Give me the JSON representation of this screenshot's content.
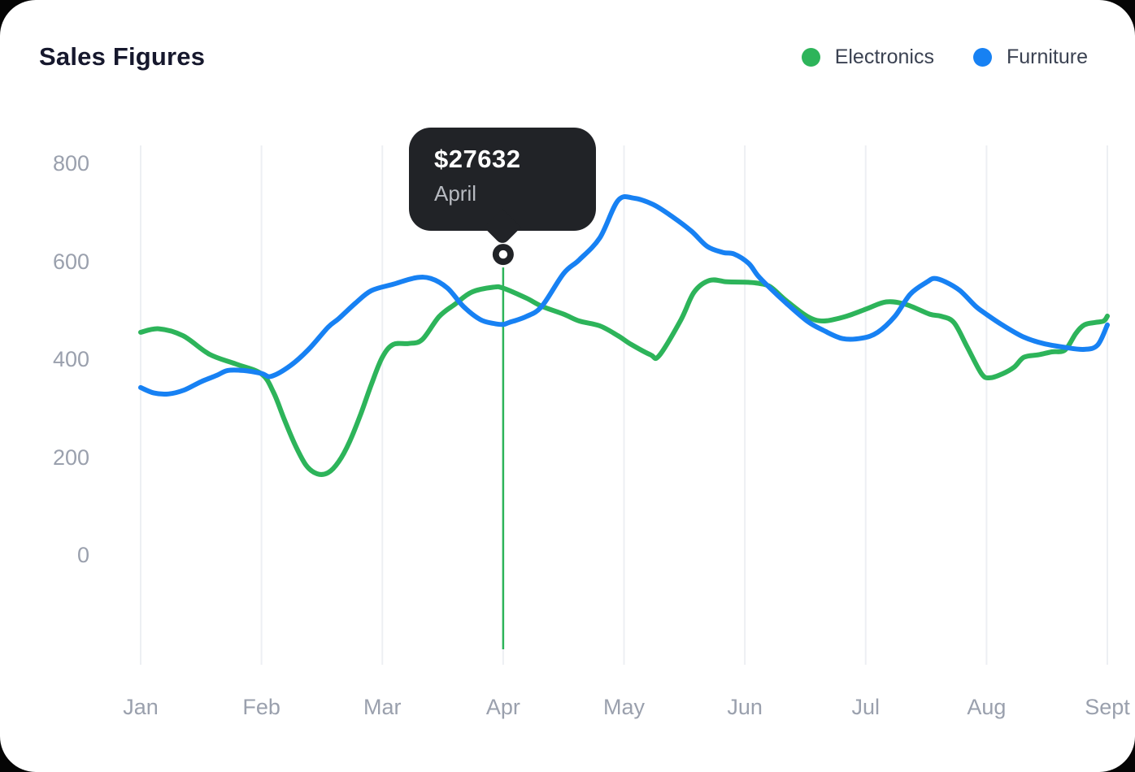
{
  "title": "Sales Figures",
  "chart_data": {
    "type": "line",
    "title": "Sales Figures",
    "categories": [
      "Jan",
      "Feb",
      "Mar",
      "Apr",
      "May",
      "Jun",
      "Jul",
      "Aug",
      "Sept"
    ],
    "y_ticks": [
      "800",
      "600",
      "400",
      "200",
      "0"
    ],
    "ylim": [
      0,
      800
    ],
    "grid": "vertical-gridlines-only",
    "legend_position": "top-right",
    "legend": [
      {
        "label": "Electronics",
        "color": "#2db45a"
      },
      {
        "label": "Furniture",
        "color": "#1781f3"
      }
    ],
    "series": [
      {
        "name": "Electronics",
        "color": "#2db45a",
        "points": [
          [
            0.0,
            455
          ],
          [
            0.15,
            462
          ],
          [
            0.35,
            448
          ],
          [
            0.57,
            410
          ],
          [
            0.79,
            390
          ],
          [
            1.0,
            370
          ],
          [
            1.1,
            332
          ],
          [
            1.19,
            276
          ],
          [
            1.28,
            224
          ],
          [
            1.37,
            183
          ],
          [
            1.46,
            166
          ],
          [
            1.55,
            168
          ],
          [
            1.64,
            191
          ],
          [
            1.73,
            232
          ],
          [
            1.82,
            287
          ],
          [
            1.91,
            349
          ],
          [
            2.0,
            404
          ],
          [
            2.09,
            430
          ],
          [
            2.22,
            432
          ],
          [
            2.33,
            440
          ],
          [
            2.47,
            487
          ],
          [
            2.6,
            512
          ],
          [
            2.74,
            537
          ],
          [
            2.92,
            547
          ],
          [
            3.0,
            545
          ],
          [
            3.19,
            525
          ],
          [
            3.32,
            508
          ],
          [
            3.5,
            492
          ],
          [
            3.63,
            478
          ],
          [
            3.8,
            468
          ],
          [
            3.95,
            448
          ],
          [
            4.06,
            430
          ],
          [
            4.22,
            409
          ],
          [
            4.29,
            407
          ],
          [
            4.47,
            480
          ],
          [
            4.58,
            537
          ],
          [
            4.71,
            561
          ],
          [
            4.85,
            558
          ],
          [
            5.03,
            557
          ],
          [
            5.11,
            555
          ],
          [
            5.21,
            548
          ],
          [
            5.34,
            520
          ],
          [
            5.52,
            487
          ],
          [
            5.65,
            478
          ],
          [
            5.83,
            487
          ],
          [
            6.01,
            503
          ],
          [
            6.17,
            517
          ],
          [
            6.33,
            512
          ],
          [
            6.53,
            492
          ],
          [
            6.62,
            488
          ],
          [
            6.73,
            475
          ],
          [
            6.84,
            425
          ],
          [
            6.96,
            370
          ],
          [
            7.03,
            362
          ],
          [
            7.13,
            370
          ],
          [
            7.23,
            384
          ],
          [
            7.31,
            404
          ],
          [
            7.43,
            409
          ],
          [
            7.54,
            415
          ],
          [
            7.65,
            419
          ],
          [
            7.74,
            453
          ],
          [
            7.81,
            470
          ],
          [
            7.9,
            475
          ],
          [
            7.97,
            478
          ],
          [
            8.0,
            488
          ]
        ]
      },
      {
        "name": "Furniture",
        "color": "#1781f3",
        "points": [
          [
            0.0,
            342
          ],
          [
            0.11,
            331
          ],
          [
            0.23,
            329
          ],
          [
            0.36,
            337
          ],
          [
            0.5,
            354
          ],
          [
            0.63,
            367
          ],
          [
            0.72,
            377
          ],
          [
            0.85,
            377
          ],
          [
            1.0,
            371
          ],
          [
            1.08,
            365
          ],
          [
            1.24,
            387
          ],
          [
            1.39,
            420
          ],
          [
            1.55,
            465
          ],
          [
            1.64,
            483
          ],
          [
            1.78,
            515
          ],
          [
            1.91,
            540
          ],
          [
            2.09,
            553
          ],
          [
            2.27,
            566
          ],
          [
            2.4,
            565
          ],
          [
            2.54,
            545
          ],
          [
            2.67,
            508
          ],
          [
            2.81,
            481
          ],
          [
            2.92,
            473
          ],
          [
            3.0,
            471
          ],
          [
            3.05,
            475
          ],
          [
            3.19,
            487
          ],
          [
            3.32,
            508
          ],
          [
            3.5,
            575
          ],
          [
            3.63,
            603
          ],
          [
            3.8,
            648
          ],
          [
            3.95,
            724
          ],
          [
            4.08,
            729
          ],
          [
            4.24,
            716
          ],
          [
            4.4,
            691
          ],
          [
            4.56,
            661
          ],
          [
            4.69,
            630
          ],
          [
            4.82,
            618
          ],
          [
            4.91,
            615
          ],
          [
            5.03,
            596
          ],
          [
            5.11,
            570
          ],
          [
            5.21,
            545
          ],
          [
            5.34,
            515
          ],
          [
            5.52,
            477
          ],
          [
            5.65,
            459
          ],
          [
            5.81,
            442
          ],
          [
            5.97,
            443
          ],
          [
            6.1,
            455
          ],
          [
            6.24,
            487
          ],
          [
            6.37,
            533
          ],
          [
            6.51,
            558
          ],
          [
            6.57,
            565
          ],
          [
            6.66,
            558
          ],
          [
            6.78,
            540
          ],
          [
            6.91,
            508
          ],
          [
            6.98,
            495
          ],
          [
            7.13,
            470
          ],
          [
            7.31,
            445
          ],
          [
            7.47,
            432
          ],
          [
            7.65,
            424
          ],
          [
            7.81,
            420
          ],
          [
            7.92,
            429
          ],
          [
            8.0,
            470
          ]
        ]
      }
    ],
    "tooltip": {
      "value": "$27632",
      "label": "April",
      "month_index": 3,
      "marker_value": 614
    }
  },
  "colors": {
    "card_bg": "#ffffff",
    "page_bg": "#050505",
    "title": "#16182d",
    "axis_label": "#9aa0ad",
    "gridline": "#edeff3",
    "legend_text": "#3b4252",
    "tooltip_bg": "#212327",
    "tooltip_value_text": "#ffffff",
    "tooltip_label_text": "#b7bac0",
    "electronics": "#2db45a",
    "furniture": "#1781f3"
  }
}
